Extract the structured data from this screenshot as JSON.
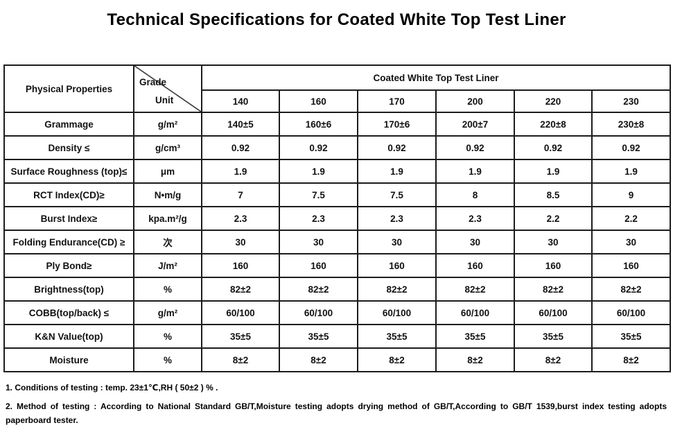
{
  "page": {
    "title": "Technical Specifications for Coated White Top Test Liner"
  },
  "table": {
    "corner": {
      "property_header": "Physical Properties",
      "grade_label": "Grade",
      "unit_label": "Unit"
    },
    "product_header": "Coated White Top Test Liner",
    "grades": [
      "140",
      "160",
      "170",
      "200",
      "220",
      "230"
    ],
    "rows": [
      {
        "label": "Grammage",
        "unit": "g/m²",
        "values": [
          "140±5",
          "160±6",
          "170±6",
          "200±7",
          "220±8",
          "230±8"
        ]
      },
      {
        "label": "Density ≤",
        "unit": "g/cm³",
        "values": [
          "0.92",
          "0.92",
          "0.92",
          "0.92",
          "0.92",
          "0.92"
        ]
      },
      {
        "label": "Surface Roughness (top)≤",
        "unit": "μm",
        "values": [
          "1.9",
          "1.9",
          "1.9",
          "1.9",
          "1.9",
          "1.9"
        ]
      },
      {
        "label": "RCT Index(CD)≥",
        "unit": "N•m/g",
        "values": [
          "7",
          "7.5",
          "7.5",
          "8",
          "8.5",
          "9"
        ]
      },
      {
        "label": "Burst Index≥",
        "unit": "kpa.m²/g",
        "values": [
          "2.3",
          "2.3",
          "2.3",
          "2.3",
          "2.2",
          "2.2"
        ]
      },
      {
        "label": "Folding Endurance(CD) ≥",
        "unit": "次",
        "values": [
          "30",
          "30",
          "30",
          "30",
          "30",
          "30"
        ]
      },
      {
        "label": "Ply Bond≥",
        "unit": "J/m²",
        "values": [
          "160",
          "160",
          "160",
          "160",
          "160",
          "160"
        ]
      },
      {
        "label": "Brightness(top)",
        "unit": "%",
        "values": [
          "82±2",
          "82±2",
          "82±2",
          "82±2",
          "82±2",
          "82±2"
        ]
      },
      {
        "label": "COBB(top/back) ≤",
        "unit": "g/m²",
        "values": [
          "60/100",
          "60/100",
          "60/100",
          "60/100",
          "60/100",
          "60/100"
        ]
      },
      {
        "label": "K&N Value(top)",
        "unit": "%",
        "values": [
          "35±5",
          "35±5",
          "35±5",
          "35±5",
          "35±5",
          "35±5"
        ]
      },
      {
        "label": "Moisture",
        "unit": "%",
        "values": [
          "8±2",
          "8±2",
          "8±2",
          "8±2",
          "8±2",
          "8±2"
        ]
      }
    ]
  },
  "notes": [
    "1.  Conditions of testing : temp. 23±1℃,RH ( 50±2 )  % .",
    "2.  Method of testing :  According to National Standard GB/T,Moisture testing adopts drying method of GB/T,According to GB/T 1539,burst index testing adopts paperboard tester."
  ]
}
